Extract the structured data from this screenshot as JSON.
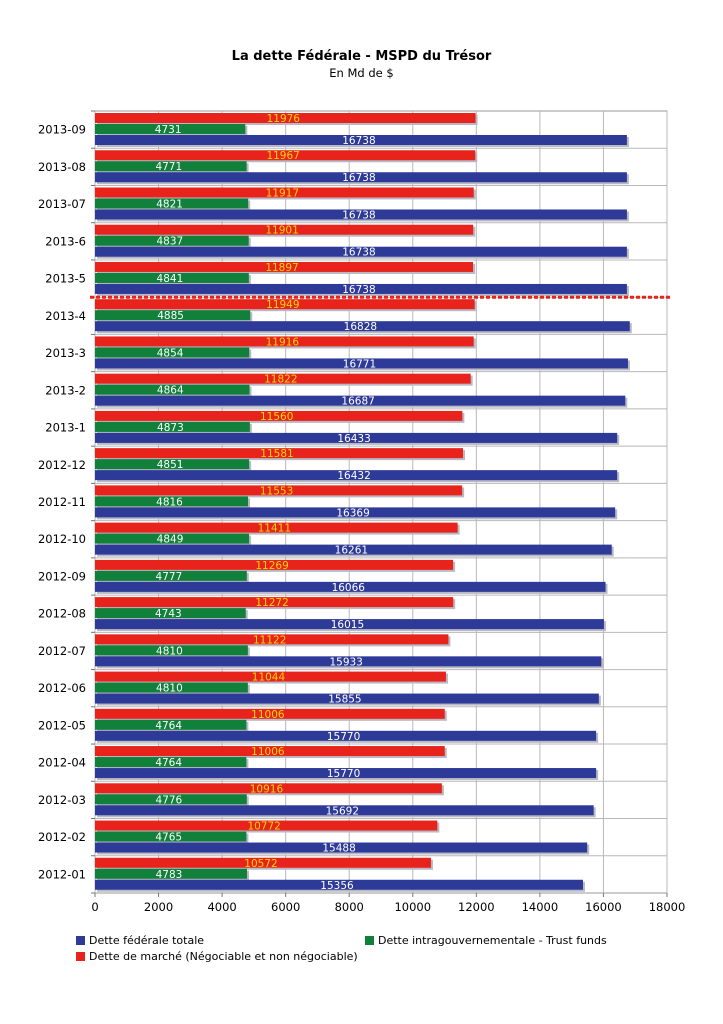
{
  "chart_data": {
    "type": "bar",
    "orientation": "horizontal",
    "title": "La dette Fédérale - MSPD du Trésor",
    "subtitle": "En Md de $",
    "categories": [
      "2013-09",
      "2013-08",
      "2013-07",
      "2013-6",
      "2013-5",
      "2013-4",
      "2013-3",
      "2013-2",
      "2013-1",
      "2012-12",
      "2012-11",
      "2012-10",
      "2012-09",
      "2012-08",
      "2012-07",
      "2012-06",
      "2012-05",
      "2012-04",
      "2012-03",
      "2012-02",
      "2012-01"
    ],
    "series": [
      {
        "name": "Dette de marché (Négociable et non négociable)",
        "color": "#e8231c",
        "label_color": "#f5d800",
        "values": [
          11976,
          11967,
          11917,
          11901,
          11897,
          11949,
          11916,
          11822,
          11560,
          11581,
          11553,
          11411,
          11269,
          11272,
          11122,
          11044,
          11006,
          11006,
          10916,
          10772,
          10572
        ]
      },
      {
        "name": "Dette intragouvernementale - Trust funds",
        "color": "#11803a",
        "label_color": "#ffffff",
        "values": [
          4731,
          4771,
          4821,
          4837,
          4841,
          4885,
          4854,
          4864,
          4873,
          4851,
          4816,
          4849,
          4777,
          4743,
          4810,
          4810,
          4764,
          4764,
          4776,
          4765,
          4783
        ]
      },
      {
        "name": "Dette fédérale totale",
        "color": "#2e3a97",
        "label_color": "#ffffff",
        "values": [
          16738,
          16738,
          16738,
          16738,
          16738,
          16828,
          16771,
          16687,
          16433,
          16432,
          16369,
          16261,
          16066,
          16015,
          15933,
          15855,
          15770,
          15770,
          15692,
          15488,
          15356
        ]
      }
    ],
    "xlim": [
      0,
      18000
    ],
    "xticks": [
      "0",
      "2000",
      "4000",
      "6000",
      "8000",
      "10000",
      "12000",
      "14000",
      "16000",
      "18000"
    ],
    "grid": true,
    "legend_position": "bottom",
    "marker_after_category": "2013-5",
    "marker_color": "#e8231c"
  },
  "legend": [
    {
      "label": "Dette fédérale totale",
      "color": "#2e3a97"
    },
    {
      "label": "Dette intragouvernementale - Trust funds",
      "color": "#11803a"
    },
    {
      "label": "Dette de marché (Négociable et non négociable)",
      "color": "#e8231c"
    }
  ]
}
